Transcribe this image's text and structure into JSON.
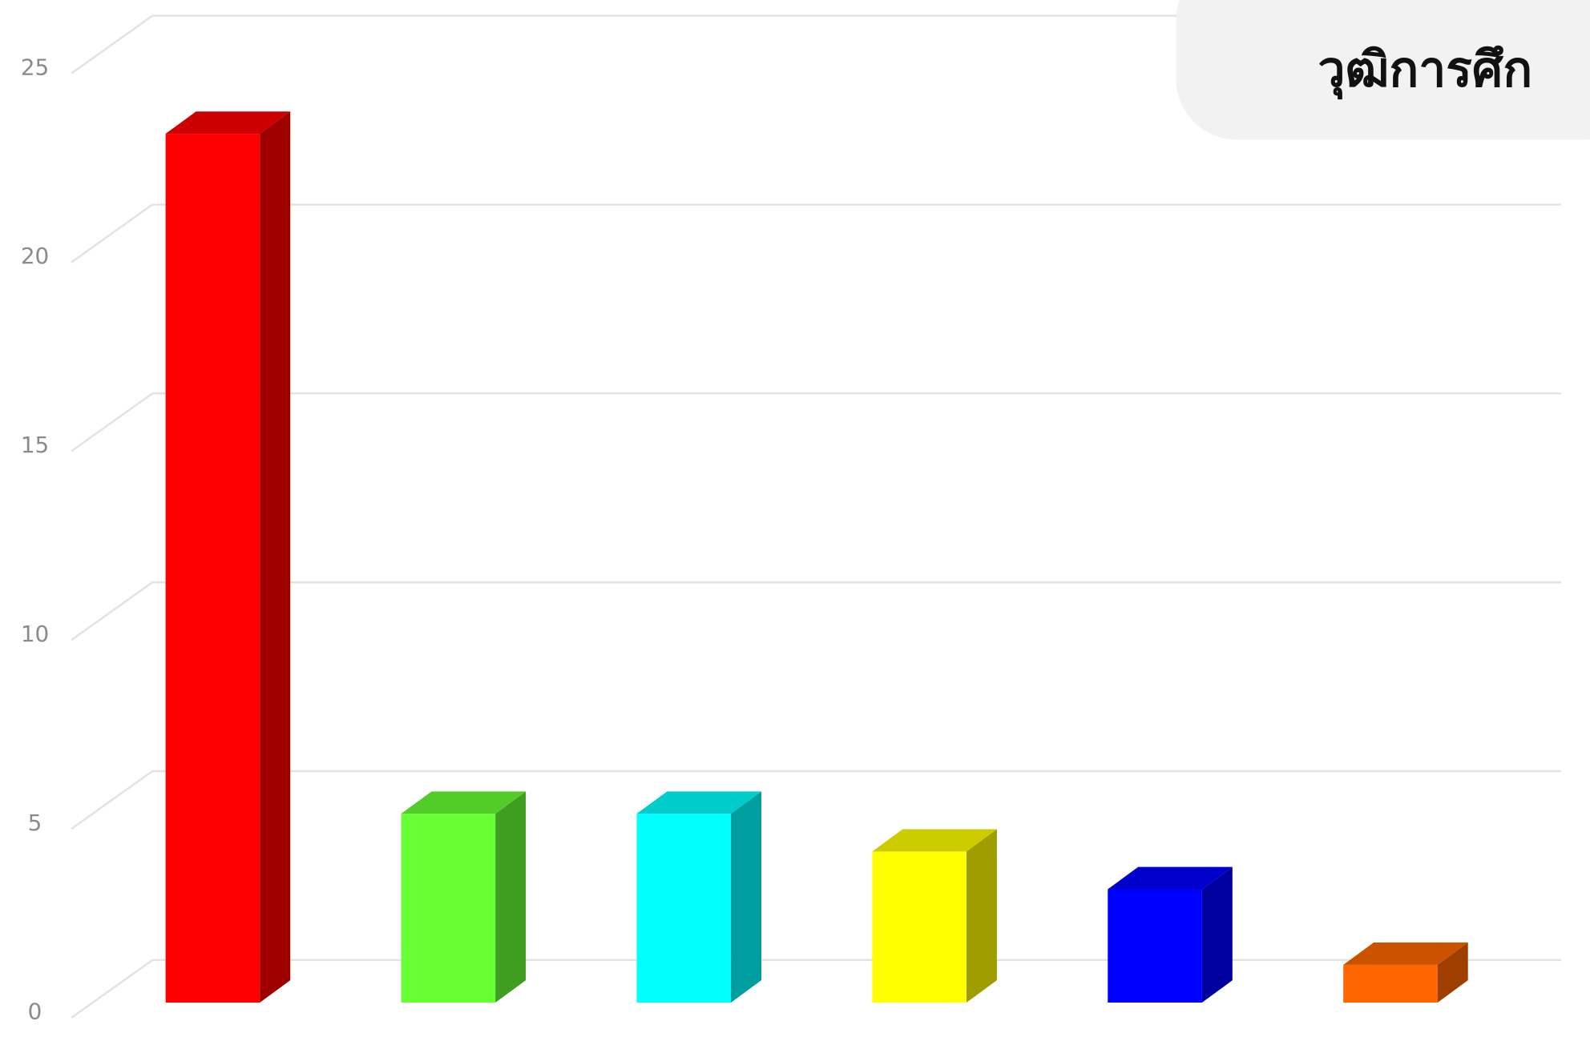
{
  "chart_data": {
    "type": "bar3d",
    "title": "วุฒิการศึก",
    "categories": [
      null,
      null,
      null,
      null,
      null,
      null
    ],
    "values": [
      23,
      5,
      5,
      4,
      3,
      1
    ],
    "colors": [
      "#ff0000",
      "#66ff33",
      "#00ffff",
      "#ffff00",
      "#0000ff",
      "#ff6600"
    ],
    "ylim": [
      0,
      25
    ],
    "yticks": [
      0,
      5,
      10,
      15,
      20,
      25
    ],
    "grid": true
  }
}
